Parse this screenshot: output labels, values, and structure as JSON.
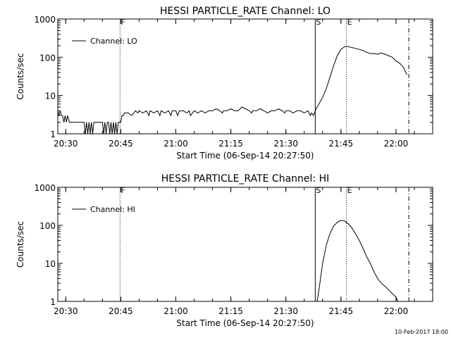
{
  "footer": {
    "date": "10-Feb-2017 18:00"
  },
  "chart_data": [
    {
      "type": "line",
      "title": "HESSI PARTICLE_RATE Channel: LO",
      "xlabel": "Start Time (06-Sep-14 20:27:50)",
      "ylabel": "Counts/sec",
      "y_scale": "log",
      "ylim": [
        1,
        1000
      ],
      "xlim": [
        "20:27:50",
        "22:10:00"
      ],
      "x_ticks": [
        "20:30",
        "20:45",
        "21:00",
        "21:15",
        "21:30",
        "21:45",
        "22:00"
      ],
      "y_ticks": [
        "1",
        "10",
        "100",
        "1000"
      ],
      "grid": false,
      "legend_position": "top-left",
      "markers": [
        {
          "label": "F",
          "x": "20:44:48",
          "style": "dotted"
        },
        {
          "label": "S",
          "x": "21:38:00",
          "style": "solid"
        },
        {
          "label": "E",
          "x": "21:46:30",
          "style": "dotted"
        },
        {
          "label": "",
          "x": "22:03:30",
          "style": "dash-dot"
        }
      ],
      "series": [
        {
          "name": "Channel: LO",
          "x": [
            "20:27:50",
            "20:28:10",
            "20:28:30",
            "20:28:50",
            "20:29:10",
            "20:29:30",
            "20:29:50",
            "20:30:10",
            "20:30:30",
            "20:31:00",
            "20:31:30",
            "20:32:30",
            "20:33:30",
            "20:34:30",
            "20:35:00",
            "20:35:20",
            "20:35:40",
            "20:36:00",
            "20:36:20",
            "20:36:40",
            "20:37:00",
            "20:37:20",
            "20:37:40",
            "20:38:00",
            "20:38:30",
            "20:39:00",
            "20:39:30",
            "20:40:00",
            "20:40:20",
            "20:40:40",
            "20:41:00",
            "20:41:20",
            "20:41:40",
            "20:42:00",
            "20:42:20",
            "20:42:40",
            "20:43:00",
            "20:43:20",
            "20:43:40",
            "20:44:00",
            "20:44:20",
            "20:44:40",
            "20:45:00",
            "20:45:20",
            "20:45:40",
            "20:46:00",
            "20:47:00",
            "20:48:00",
            "20:49:00",
            "20:49:40",
            "20:50:00",
            "20:51:00",
            "20:52:00",
            "20:52:40",
            "20:53:00",
            "20:54:00",
            "20:55:00",
            "20:55:40",
            "20:56:00",
            "20:57:00",
            "20:58:00",
            "20:58:40",
            "20:59:00",
            "21:00:00",
            "21:00:30",
            "21:01:00",
            "21:02:00",
            "21:03:00",
            "21:03:40",
            "21:04:00",
            "21:05:00",
            "21:06:00",
            "21:07:00",
            "21:08:00",
            "21:09:00",
            "21:10:00",
            "21:11:00",
            "21:12:00",
            "21:12:40",
            "21:13:00",
            "21:14:00",
            "21:15:00",
            "21:16:00",
            "21:17:00",
            "21:18:00",
            "21:19:00",
            "21:20:00",
            "21:20:40",
            "21:21:00",
            "21:22:00",
            "21:23:00",
            "21:24:00",
            "21:25:00",
            "21:26:00",
            "21:27:00",
            "21:28:00",
            "21:29:00",
            "21:29:40",
            "21:30:00",
            "21:31:00",
            "21:32:00",
            "21:33:00",
            "21:34:00",
            "21:35:00",
            "21:36:00",
            "21:36:40",
            "21:37:00",
            "21:37:30",
            "21:38:00",
            "21:38:30",
            "21:39:00",
            "21:40:00",
            "21:41:00",
            "21:42:00",
            "21:43:00",
            "21:44:00",
            "21:45:00",
            "21:46:00",
            "21:47:00",
            "21:48:00",
            "21:49:00",
            "21:50:00",
            "21:51:00",
            "21:52:00",
            "21:53:00",
            "21:54:00",
            "21:55:00",
            "21:56:00",
            "21:57:00",
            "21:58:00",
            "21:59:00",
            "22:00:00",
            "22:01:00",
            "22:02:00",
            "22:03:00"
          ],
          "y": [
            4,
            3,
            4,
            3,
            3,
            2,
            3,
            2,
            3,
            2,
            2,
            2,
            2,
            2,
            2,
            1,
            2,
            1,
            2,
            1,
            2,
            1,
            2,
            2,
            2,
            2,
            2,
            2,
            1,
            2,
            1,
            2,
            2,
            1,
            2,
            1,
            2,
            1,
            2,
            1,
            2,
            2,
            2,
            3,
            3,
            3.5,
            3.5,
            3,
            4,
            3.5,
            4,
            3.5,
            4,
            3,
            4,
            3.5,
            4,
            3,
            4,
            3.5,
            4,
            3,
            4,
            4,
            3,
            4,
            4,
            3.5,
            4,
            3,
            4,
            3.5,
            4,
            3.5,
            4,
            4,
            4.5,
            4,
            3.5,
            4,
            4,
            4.5,
            4,
            4,
            5,
            4.5,
            4,
            3.5,
            4,
            4,
            4.5,
            4,
            3.5,
            4,
            4,
            4.5,
            4,
            3.5,
            4,
            4,
            3.5,
            4,
            4,
            3.5,
            4,
            3,
            3.5,
            3,
            4,
            5,
            6,
            9,
            15,
            30,
            60,
            110,
            160,
            190,
            190,
            180,
            170,
            160,
            150,
            135,
            125,
            125,
            120,
            130,
            120,
            110,
            100,
            80,
            70,
            55,
            35
          ]
        }
      ]
    },
    {
      "type": "line",
      "title": "HESSI PARTICLE_RATE Channel: HI",
      "xlabel": "Start Time (06-Sep-14 20:27:50)",
      "ylabel": "Counts/sec",
      "y_scale": "log",
      "ylim": [
        1,
        1000
      ],
      "xlim": [
        "20:27:50",
        "22:10:00"
      ],
      "x_ticks": [
        "20:30",
        "20:45",
        "21:00",
        "21:15",
        "21:30",
        "21:45",
        "22:00"
      ],
      "y_ticks": [
        "1",
        "10",
        "100",
        "1000"
      ],
      "grid": false,
      "legend_position": "top-left",
      "markers": [
        {
          "label": "F",
          "x": "20:44:48",
          "style": "dotted"
        },
        {
          "label": "S",
          "x": "21:38:00",
          "style": "solid"
        },
        {
          "label": "E",
          "x": "21:46:30",
          "style": "dotted"
        },
        {
          "label": "",
          "x": "22:03:30",
          "style": "dash-dot"
        }
      ],
      "series": [
        {
          "name": "Channel: HI",
          "x": [
            "21:38:30",
            "21:39:00",
            "21:40:00",
            "21:41:00",
            "21:42:00",
            "21:43:00",
            "21:44:00",
            "21:45:00",
            "21:46:00",
            "21:47:00",
            "21:48:00",
            "21:49:00",
            "21:50:00",
            "21:51:00",
            "21:52:00",
            "21:53:00",
            "21:54:00",
            "21:55:00",
            "21:56:00",
            "21:57:00",
            "21:58:00",
            "21:59:00",
            "22:00:00",
            "22:00:30"
          ],
          "y": [
            1,
            2,
            10,
            30,
            60,
            95,
            120,
            135,
            130,
            110,
            85,
            60,
            40,
            25,
            15,
            10,
            6,
            4,
            3,
            2.5,
            2,
            1.6,
            1.3,
            1
          ]
        }
      ]
    }
  ]
}
